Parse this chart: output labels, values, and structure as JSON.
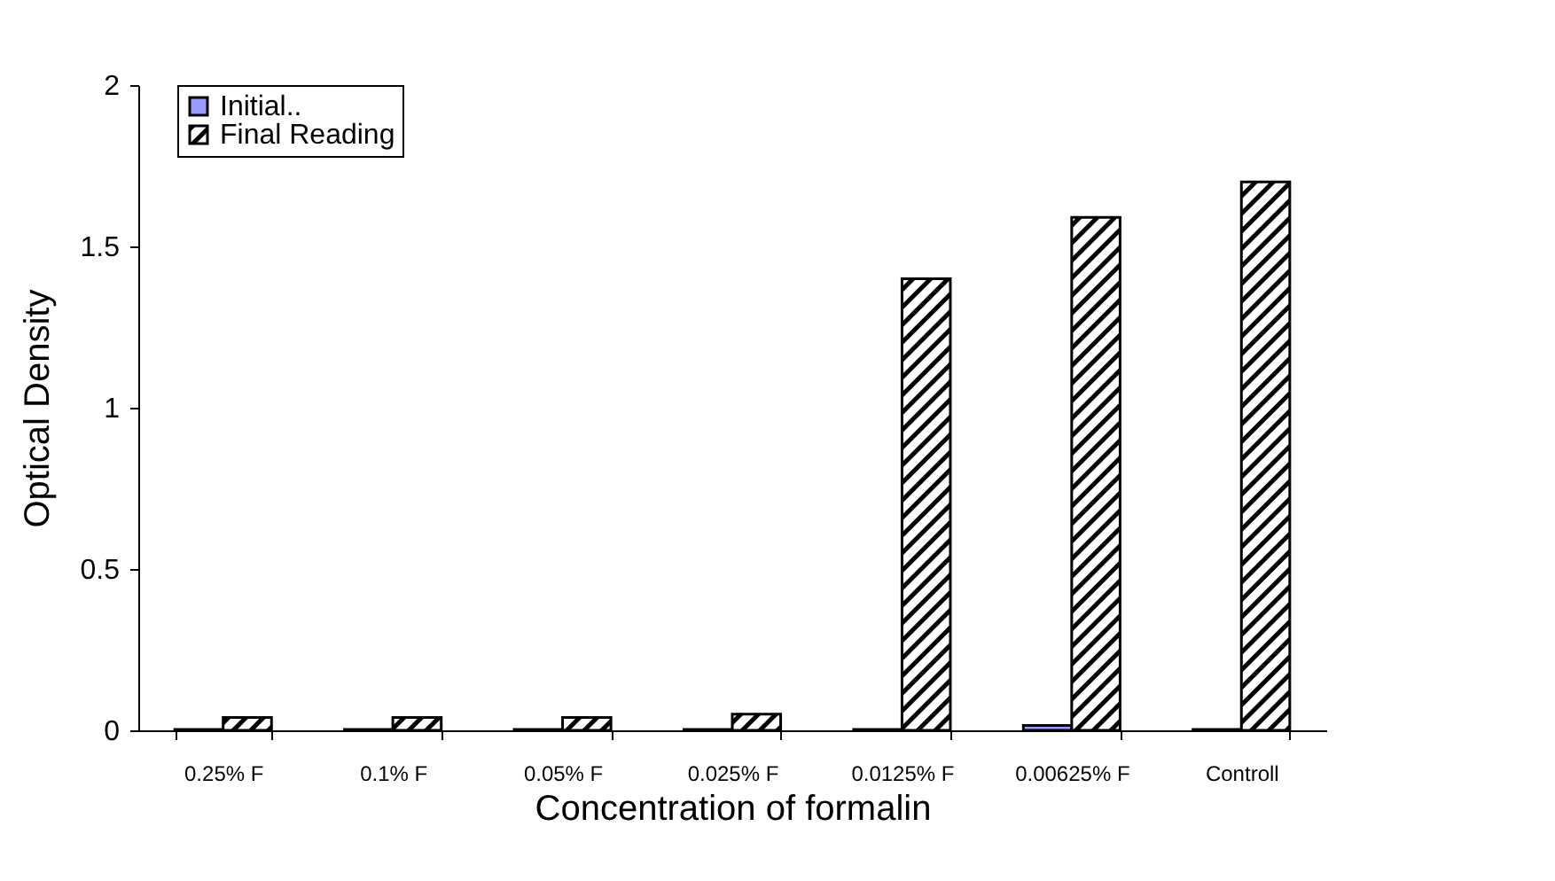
{
  "chart_data": {
    "type": "bar",
    "xlabel": "Concentration of formalin",
    "ylabel": "Optical Density",
    "categories": [
      "0.25% F",
      "0.1% F",
      "0.05% F",
      "0.025% F",
      "0.0125% F",
      "0.00625% F",
      "Controll"
    ],
    "series": [
      {
        "name": "Initial..",
        "color": "#9999ff",
        "values": [
          0.003,
          0.003,
          0.003,
          0.003,
          0.003,
          0.015,
          0.003
        ]
      },
      {
        "name": "Final Reading",
        "color": "#000000",
        "values": [
          0.04,
          0.04,
          0.04,
          0.05,
          1.4,
          1.59,
          1.7
        ]
      }
    ],
    "ylim": [
      0,
      2
    ],
    "yticks": [
      0,
      0.5,
      1,
      1.5,
      2
    ],
    "grid": false,
    "legend": "top left"
  }
}
